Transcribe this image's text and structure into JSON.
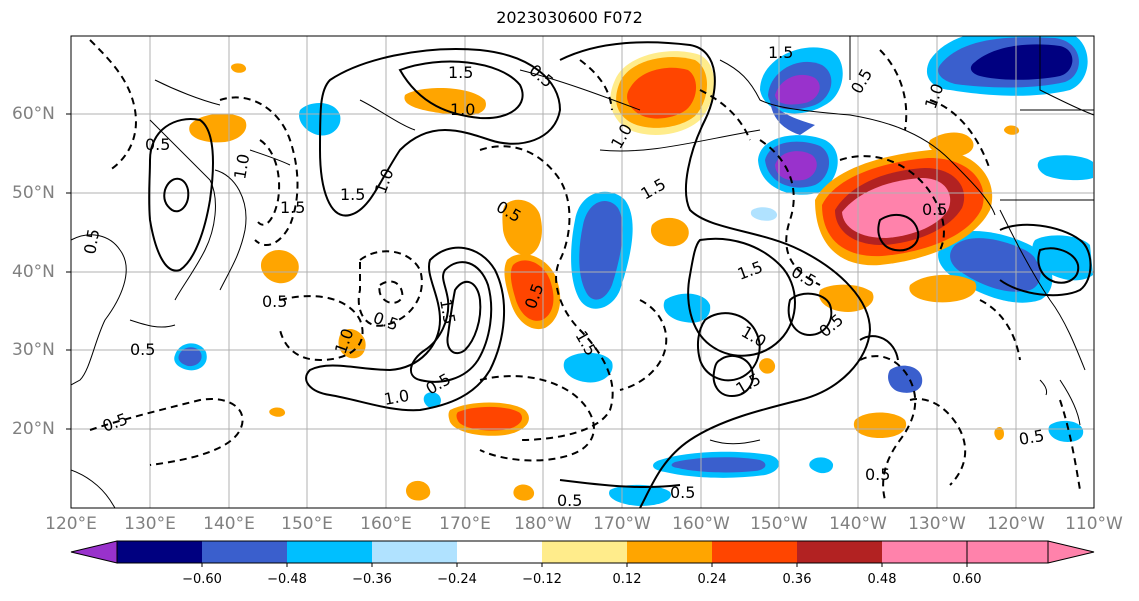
{
  "title": "2023030600 F072",
  "lat_labels": [
    "60°N",
    "50°N",
    "40°N",
    "30°N",
    "20°N"
  ],
  "lon_labels": [
    "120°E",
    "130°E",
    "140°E",
    "150°E",
    "160°E",
    "170°E",
    "180°W",
    "170°W",
    "160°W",
    "150°W",
    "140°W",
    "130°W",
    "120°W",
    "110°W"
  ],
  "contour_labels": [
    "1.5",
    "0.5",
    "1.0",
    "0.5",
    "1.5",
    "1.0",
    "1.5",
    "0.5",
    "1.5",
    "0.5",
    "1.0",
    "1.5",
    "1.0",
    "0.5",
    "0.5",
    "1.0",
    "1.5",
    "0.5",
    "0.5",
    "1.0",
    "0.5",
    "1.5",
    "1.0",
    "0.5",
    "1.5",
    "1.0",
    "0.5",
    "0.5",
    "1.5",
    "0.5",
    "0.5",
    "0.5",
    "0.5",
    "0.5",
    "0.5"
  ],
  "colorbar": {
    "tick_labels": [
      "−0.60",
      "−0.48",
      "−0.36",
      "−0.24",
      "−0.12",
      "0.12",
      "0.24",
      "0.36",
      "0.48",
      "0.60"
    ],
    "colors": [
      "#9932cc",
      "#000080",
      "#3a5fcd",
      "#00bfff",
      "#b0e2ff",
      "#ffffff",
      "#ffec8b",
      "#ffa500",
      "#ff4500",
      "#b22222",
      "#ff82ab"
    ]
  }
}
